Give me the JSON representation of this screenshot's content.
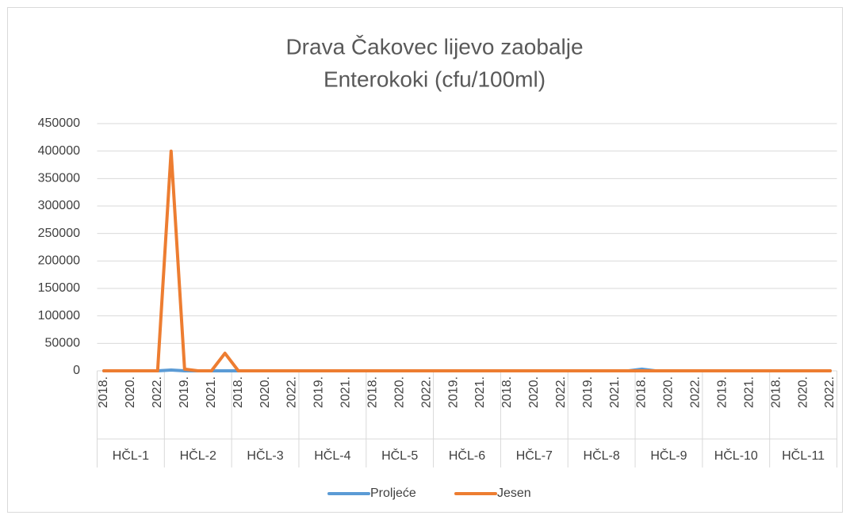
{
  "chart_data": {
    "type": "line",
    "title": [
      "Drava Čakovec lijevo zaobalje",
      "Enterokoki (cfu/100ml)"
    ],
    "groups": [
      "HČL-1",
      "HČL-2",
      "HČL-3",
      "HČL-4",
      "HČL-5",
      "HČL-6",
      "HČL-7",
      "HČL-8",
      "HČL-9",
      "HČL-10",
      "HČL-11"
    ],
    "categories": [
      "2018.",
      null,
      "2020.",
      null,
      "2022.",
      null,
      "2019.",
      null,
      "2021.",
      null,
      "2018.",
      null,
      "2020.",
      null,
      "2022.",
      null,
      "2019.",
      null,
      "2021.",
      null,
      "2018.",
      null,
      "2020.",
      null,
      "2022.",
      null,
      "2019.",
      null,
      "2021.",
      null,
      "2018.",
      null,
      "2020.",
      null,
      "2022.",
      null,
      "2019.",
      null,
      "2021.",
      null,
      "2018.",
      null,
      "2020.",
      null,
      "2022.",
      null,
      "2019.",
      null,
      "2021.",
      null,
      "2018.",
      null,
      "2020.",
      null,
      "2022."
    ],
    "series": [
      {
        "name": "Proljeće",
        "color": "#5b9bd5",
        "values": [
          0,
          0,
          0,
          0,
          0,
          1500,
          0,
          0,
          0,
          0,
          0,
          0,
          0,
          0,
          0,
          0,
          0,
          0,
          0,
          0,
          0,
          0,
          0,
          0,
          0,
          0,
          0,
          0,
          0,
          0,
          0,
          0,
          0,
          0,
          0,
          0,
          0,
          0,
          0,
          0,
          3000,
          0,
          0,
          0,
          0,
          0,
          0,
          0,
          0,
          0,
          0,
          0,
          0,
          0,
          0
        ]
      },
      {
        "name": "Jesen",
        "color": "#ed7d31",
        "values": [
          0,
          0,
          0,
          0,
          0,
          400000,
          3000,
          0,
          0,
          32000,
          0,
          0,
          0,
          0,
          0,
          0,
          0,
          0,
          0,
          0,
          0,
          0,
          0,
          0,
          0,
          0,
          0,
          0,
          0,
          0,
          0,
          0,
          0,
          0,
          0,
          0,
          0,
          0,
          0,
          0,
          0,
          0,
          0,
          0,
          0,
          0,
          0,
          0,
          0,
          0,
          0,
          0,
          0,
          0,
          0
        ]
      }
    ],
    "ylim": [
      0,
      450000
    ],
    "yticks": [
      0,
      50000,
      100000,
      150000,
      200000,
      250000,
      300000,
      350000,
      400000,
      450000
    ],
    "grid": true,
    "legend": "bottom"
  }
}
